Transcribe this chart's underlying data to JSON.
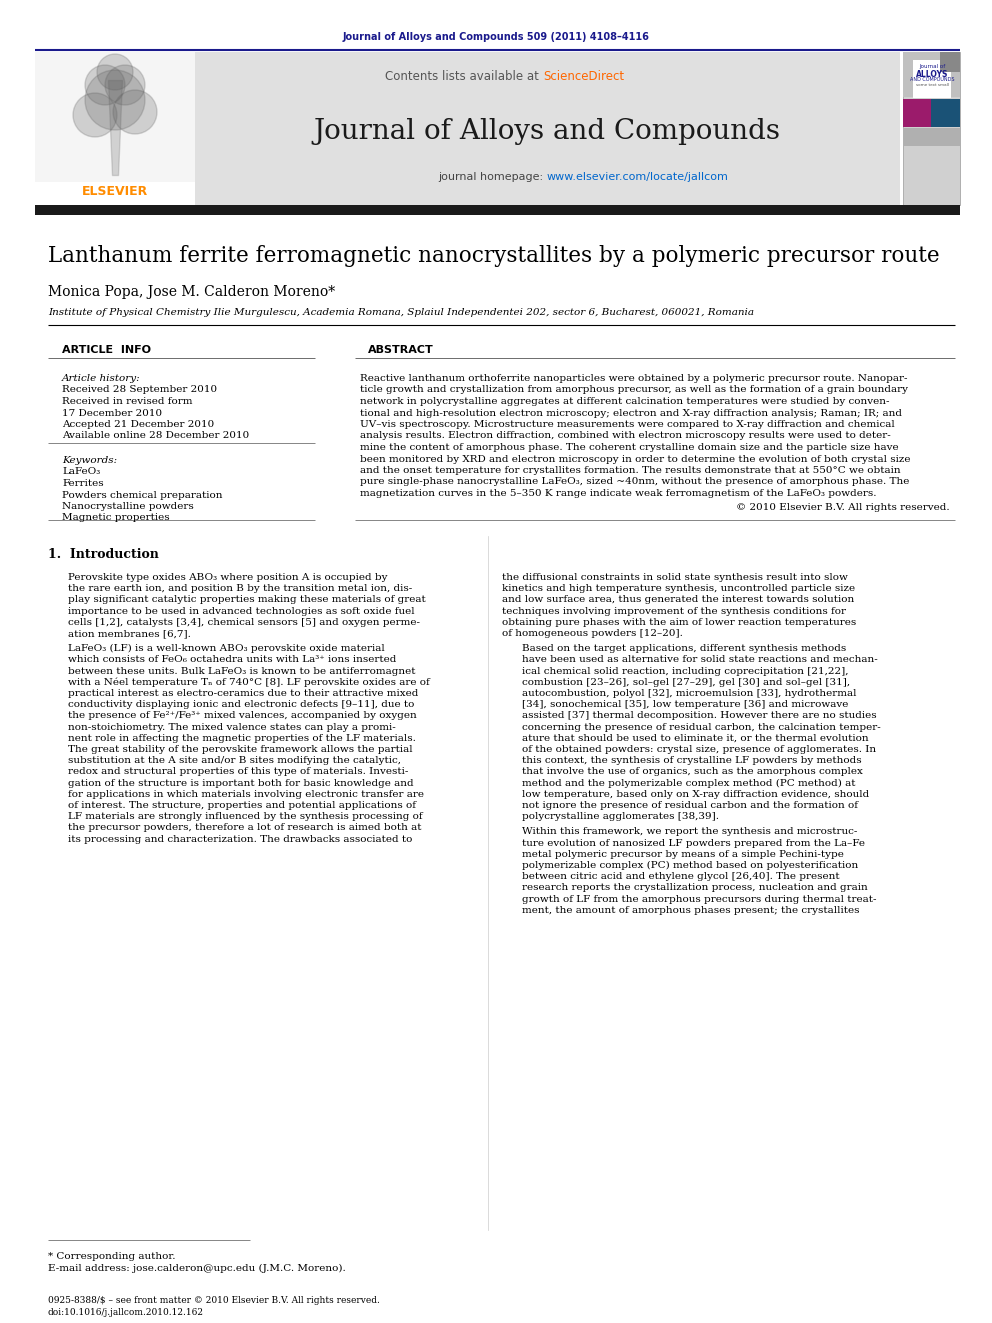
{
  "journal_ref": "Journal of Alloys and Compounds 509 (2011) 4108–4116",
  "journal_ref_color": "#1a1a8c",
  "journal_name": "Journal of Alloys and Compounds",
  "journal_homepage_link": "www.elsevier.com/locate/jallcom",
  "paper_title": "Lanthanum ferrite ferromagnetic nanocrystallites by a polymeric precursor route",
  "authors": "Monica Popa, Jose M. Calderon Moreno*",
  "affiliation": "Institute of Physical Chemistry Ilie Murgulescu, Academia Romana, Splaiul Independentei 202, sector 6, Bucharest, 060021, Romania",
  "article_info_header": "ARTICLE  INFO",
  "abstract_header": "ABSTRACT",
  "article_history_label": "Article history:",
  "received_1": "Received 28 September 2010",
  "received_2": "Received in revised form",
  "received_2b": "17 December 2010",
  "accepted": "Accepted 21 December 2010",
  "available": "Available online 28 December 2010",
  "keywords_label": "Keywords:",
  "keywords": [
    "LaFeO₃",
    "Ferrites",
    "Powders chemical preparation",
    "Nanocrystalline powders",
    "Magnetic properties"
  ],
  "copyright": "© 2010 Elsevier B.V. All rights reserved.",
  "section1_title": "1.  Introduction",
  "footnote_star": "* Corresponding author.",
  "footnote_email": "E-mail address: jose.calderon@upc.edu (J.M.C. Moreno).",
  "footer_issn": "0925-8388/$ – see front matter © 2010 Elsevier B.V. All rights reserved.",
  "footer_doi": "doi:10.1016/j.jallcom.2010.12.162",
  "link_color": "#0066cc",
  "sciencedirect_color": "#ff6600",
  "bg_color": "#ffffff",
  "text_color": "#000000",
  "gray_header_color": "#e0e0e0",
  "dark_bar_color": "#1a1a1a",
  "blue_line_color": "#1a1a8c",
  "abstract_lines": [
    "Reactive lanthanum orthoferrite nanoparticles were obtained by a polymeric precursor route. Nanopar-",
    "ticle growth and crystallization from amorphous precursor, as well as the formation of a grain boundary",
    "network in polycrystalline aggregates at different calcination temperatures were studied by conven-",
    "tional and high-resolution electron microscopy; electron and X-ray diffraction analysis; Raman; IR; and",
    "UV–vis spectroscopy. Microstructure measurements were compared to X-ray diffraction and chemical",
    "analysis results. Electron diffraction, combined with electron microscopy results were used to deter-",
    "mine the content of amorphous phase. The coherent crystalline domain size and the particle size have",
    "been monitored by XRD and electron microscopy in order to determine the evolution of both crystal size",
    "and the onset temperature for crystallites formation. The results demonstrate that at 550°C we obtain",
    "pure single-phase nanocrystalline LaFeO₃, sized ~40nm, without the presence of amorphous phase. The",
    "magnetization curves in the 5–350 K range indicate weak ferromagnetism of the LaFeO₃ powders."
  ],
  "intro_c1_p1": [
    "Perovskite type oxides ABO₃ where position A is occupied by",
    "the rare earth ion, and position B by the transition metal ion, dis-",
    "play significant catalytic properties making these materials of great",
    "importance to be used in advanced technologies as soft oxide fuel",
    "cells [1,2], catalysts [3,4], chemical sensors [5] and oxygen perme-",
    "ation membranes [6,7]."
  ],
  "intro_c1_p2": [
    "LaFeO₃ (LF) is a well-known ABO₃ perovskite oxide material",
    "which consists of FeO₆ octahedra units with La³⁺ ions inserted",
    "between these units. Bulk LaFeO₃ is known to be antiferromagnet",
    "with a Néel temperature Tₙ of 740°C [8]. LF perovskite oxides are of",
    "practical interest as electro-ceramics due to their attractive mixed",
    "conductivity displaying ionic and electronic defects [9–11], due to",
    "the presence of Fe²⁺/Fe³⁺ mixed valences, accompanied by oxygen",
    "non-stoichiometry. The mixed valence states can play a promi-",
    "nent role in affecting the magnetic properties of the LF materials.",
    "The great stability of the perovskite framework allows the partial",
    "substitution at the A site and/or B sites modifying the catalytic,",
    "redox and structural properties of this type of materials. Investi-",
    "gation of the structure is important both for basic knowledge and",
    "for applications in which materials involving electronic transfer are",
    "of interest. The structure, properties and potential applications of",
    "LF materials are strongly influenced by the synthesis processing of",
    "the precursor powders, therefore a lot of research is aimed both at",
    "its processing and characterization. The drawbacks associated to"
  ],
  "intro_c2_p1": [
    "the diffusional constraints in solid state synthesis result into slow",
    "kinetics and high temperature synthesis, uncontrolled particle size",
    "and low surface area, thus generated the interest towards solution",
    "techniques involving improvement of the synthesis conditions for",
    "obtaining pure phases with the aim of lower reaction temperatures",
    "of homogeneous powders [12–20]."
  ],
  "intro_c2_p2": [
    "Based on the target applications, different synthesis methods",
    "have been used as alternative for solid state reactions and mechan-",
    "ical chemical solid reaction, including coprecipitation [21,22],",
    "combustion [23–26], sol–gel [27–29], gel [30] and sol–gel [31],",
    "autocombustion, polyol [32], microemulsion [33], hydrothermal",
    "[34], sonochemical [35], low temperature [36] and microwave",
    "assisted [37] thermal decomposition. However there are no studies",
    "concerning the presence of residual carbon, the calcination temper-",
    "ature that should be used to eliminate it, or the thermal evolution",
    "of the obtained powders: crystal size, presence of agglomerates. In",
    "this context, the synthesis of crystalline LF powders by methods",
    "that involve the use of organics, such as the amorphous complex",
    "method and the polymerizable complex method (PC method) at",
    "low temperature, based only on X-ray diffraction evidence, should",
    "not ignore the presence of residual carbon and the formation of",
    "polycrystalline agglomerates [38,39]."
  ],
  "intro_c2_p3": [
    "Within this framework, we report the synthesis and microstruc-",
    "ture evolution of nanosized LF powders prepared from the La–Fe",
    "metal polymeric precursor by means of a simple Pechini-type",
    "polymerizable complex (PC) method based on polyesterification",
    "between citric acid and ethylene glycol [26,40]. The present",
    "research reports the crystallization process, nucleation and grain",
    "growth of LF from the amorphous precursors during thermal treat-",
    "ment, the amount of amorphous phases present; the crystallites"
  ]
}
